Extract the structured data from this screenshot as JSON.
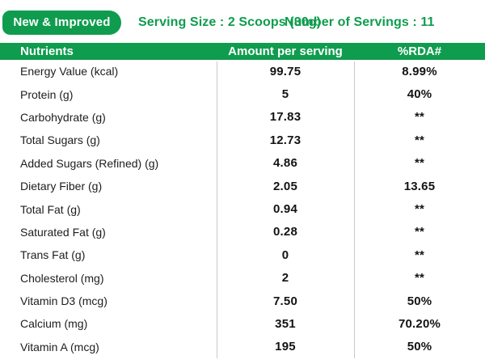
{
  "colors": {
    "accent_green": "#0f9c4e",
    "divider_gray": "#c9c9c9",
    "text_dark": "#1d1d1b"
  },
  "top_bar": {
    "badge": "New & Improved",
    "serving_size": "Serving Size : 2 Scoops (30g)",
    "servings": "Number of Servings : 11"
  },
  "table": {
    "headers": [
      "Nutrients",
      "Amount per serving",
      "%RDA#"
    ],
    "rows": [
      {
        "nutrient": "Energy Value (kcal)",
        "amount": "99.75",
        "rda": "8.99%"
      },
      {
        "nutrient": "Protein (g)",
        "amount": "5",
        "rda": "40%"
      },
      {
        "nutrient": "Carbohydrate (g)",
        "amount": "17.83",
        "rda": "**"
      },
      {
        "nutrient": "Total Sugars (g)",
        "amount": "12.73",
        "rda": "**"
      },
      {
        "nutrient": "Added Sugars (Refined) (g)",
        "amount": "4.86",
        "rda": "**"
      },
      {
        "nutrient": "Dietary Fiber (g)",
        "amount": "2.05",
        "rda": "13.65"
      },
      {
        "nutrient": "Total Fat (g)",
        "amount": "0.94",
        "rda": "**"
      },
      {
        "nutrient": "Saturated Fat (g)",
        "amount": "0.28",
        "rda": "**"
      },
      {
        "nutrient": "Trans Fat (g)",
        "amount": "0",
        "rda": "**"
      },
      {
        "nutrient": "Cholesterol (mg)",
        "amount": "2",
        "rda": "**"
      },
      {
        "nutrient": "Vitamin D3 (mcg)",
        "amount": "7.50",
        "rda": "50%"
      },
      {
        "nutrient": "Calcium (mg)",
        "amount": "351",
        "rda": "70.20%"
      },
      {
        "nutrient": "Vitamin A (mcg)",
        "amount": "195",
        "rda": "50%"
      }
    ]
  }
}
